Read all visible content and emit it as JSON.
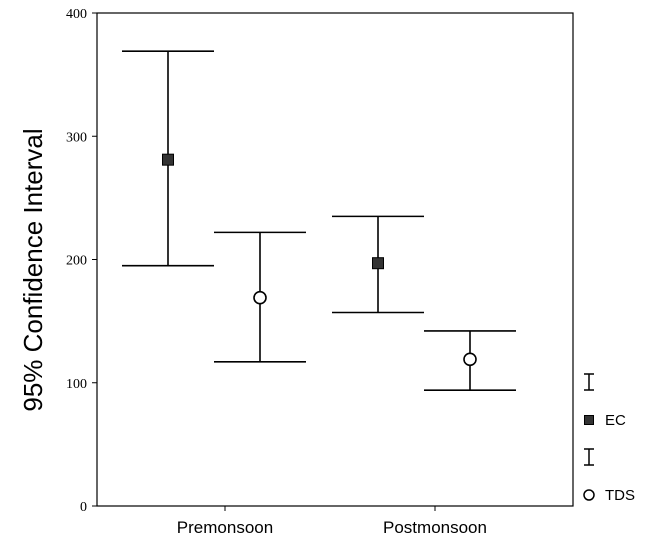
{
  "chart_data": {
    "type": "errorbar",
    "ylabel": "95% Confidence Interval",
    "xlabel": "",
    "ylim": [
      0,
      400
    ],
    "yticks": [
      0,
      100,
      200,
      300,
      400
    ],
    "categories": [
      "Premonsoon",
      "Postmonsoon"
    ],
    "grid": false,
    "legend_position": "right",
    "series": [
      {
        "name": "EC",
        "marker": "filled-square",
        "color": "#333333",
        "mean": [
          281,
          197
        ],
        "lower": [
          195,
          157
        ],
        "upper": [
          369,
          235
        ]
      },
      {
        "name": "TDS",
        "marker": "open-circle",
        "color": "#000000",
        "mean": [
          169,
          119
        ],
        "lower": [
          117,
          94
        ],
        "upper": [
          222,
          142
        ]
      }
    ]
  }
}
